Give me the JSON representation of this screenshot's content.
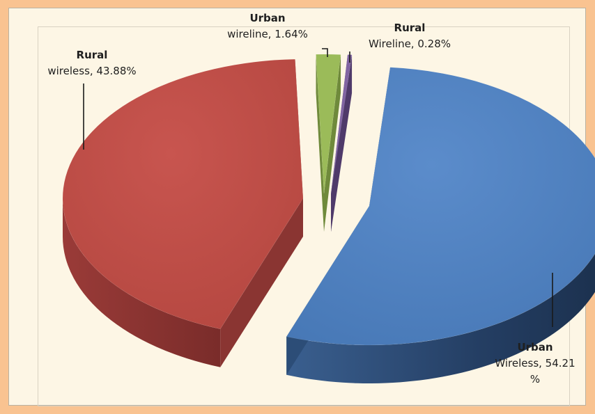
{
  "chart_data": {
    "type": "pie",
    "style": "3d-exploded",
    "legend": "none",
    "slices": [
      {
        "label_lines": [
          "Urban",
          "Wireless, 54.21",
          "%"
        ],
        "name": "Urban Wireless",
        "value": 54.21,
        "color": "#4f81bd",
        "side_color": "#2c4d77"
      },
      {
        "label_lines": [
          "Rural",
          "wireless, 43.88%"
        ],
        "name": "Rural wireless",
        "value": 43.88,
        "color": "#c0504d",
        "side_color": "#8a3532"
      },
      {
        "label_lines": [
          "Urban",
          "wireline, 1.64%"
        ],
        "name": "Urban wireline",
        "value": 1.64,
        "color": "#9bbb59",
        "side_color": "#6f8a3b"
      },
      {
        "label_lines": [
          "Rural",
          "Wireline, 0.28%"
        ],
        "name": "Rural Wireline",
        "value": 0.28,
        "color": "#8064a2",
        "side_color": "#4f3a6a"
      }
    ]
  },
  "colors": {
    "outer_background": "#f9c391",
    "plot_background": "#fdf6e5",
    "leader_line": "#1a1a1a"
  }
}
